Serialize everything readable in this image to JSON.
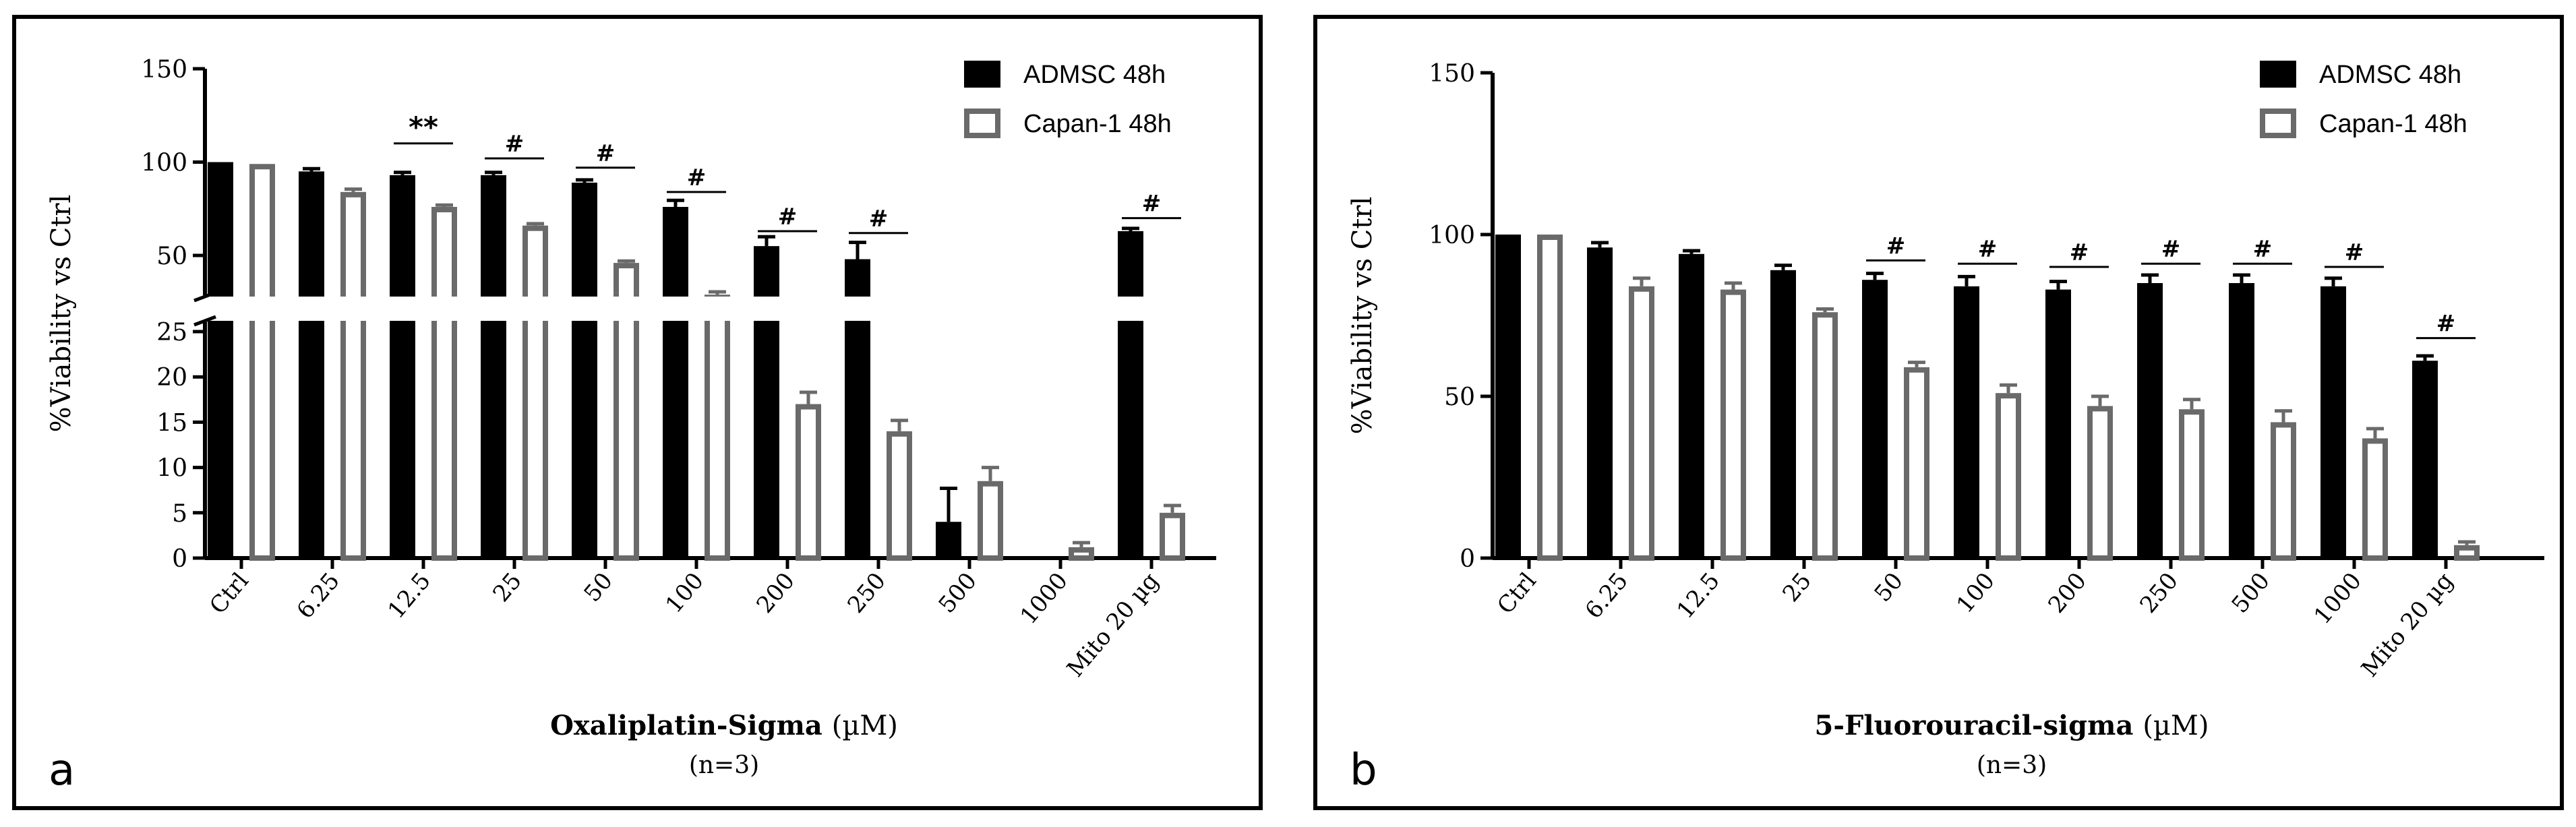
{
  "colors": {
    "admsc": "#000000",
    "capan": "#6a6a6a",
    "axis": "#000000"
  },
  "chart_data": [
    {
      "panel_label": "a",
      "type": "bar",
      "axis_break": true,
      "title": "",
      "ylabel": "%Viability vs Ctrl",
      "xlabel": "Oxaliplatin-Sigma",
      "xlabel_unit": "(µM)",
      "n_label": "(n=3)",
      "categories": [
        "Ctrl",
        "6.25",
        "12.5",
        "25",
        "50",
        "100",
        "200",
        "250",
        "500",
        "1000",
        "Mito 20 µg"
      ],
      "lower_ticks": [
        0,
        5,
        10,
        15,
        20,
        25
      ],
      "upper_ticks": [
        50,
        100,
        150
      ],
      "ylim_lower": [
        0,
        25
      ],
      "ylim_upper": [
        25,
        150
      ],
      "legend": [
        "ADMSC 48h",
        "Capan-1 48h"
      ],
      "legend_position": "top-right",
      "series": [
        {
          "name": "ADMSC 48h",
          "values": [
            100,
            95,
            93,
            93,
            89,
            76,
            55,
            48,
            4,
            0,
            63
          ],
          "errors": [
            0,
            1.5,
            1.5,
            1.5,
            1.5,
            3.5,
            5,
            9,
            3.7,
            0,
            1.5
          ]
        },
        {
          "name": "Capan-1 48h",
          "values": [
            99,
            84,
            76,
            66,
            46,
            29,
            17,
            14,
            8.5,
            1.2,
            5
          ],
          "errors": [
            0,
            1.5,
            1,
            1,
            1,
            1.5,
            1.3,
            1.2,
            1.5,
            0.5,
            0.8
          ]
        }
      ],
      "annotations": [
        {
          "category": 2,
          "value": 110,
          "text": "**"
        },
        {
          "category": 3,
          "value": 102,
          "text": "#"
        },
        {
          "category": 4,
          "value": 97,
          "text": "#"
        },
        {
          "category": 5,
          "value": 84,
          "text": "#"
        },
        {
          "category": 6,
          "value": 63,
          "text": "#"
        },
        {
          "category": 7,
          "value": 62,
          "text": "#"
        },
        {
          "category": 10,
          "value": 70,
          "text": "#"
        }
      ]
    },
    {
      "panel_label": "b",
      "type": "bar",
      "axis_break": false,
      "title": "",
      "ylabel": "%Viability vs Ctrl",
      "xlabel": "5-Fluorouracil-sigma",
      "xlabel_unit": "(µM)",
      "n_label": "(n=3)",
      "categories": [
        "Ctrl",
        "6.25",
        "12.5",
        "25",
        "50",
        "100",
        "200",
        "250",
        "500",
        "1000",
        "Mito 20 µg"
      ],
      "ticks": [
        0,
        50,
        100,
        150
      ],
      "ylim": [
        0,
        150
      ],
      "legend": [
        "ADMSC 48h",
        "Capan-1 48h"
      ],
      "legend_position": "top-right",
      "series": [
        {
          "name": "ADMSC 48h",
          "values": [
            100,
            96,
            94,
            89,
            86,
            84,
            83,
            85,
            85,
            84,
            61
          ],
          "errors": [
            0,
            1.5,
            1,
            1.5,
            2,
            3,
            2.5,
            2.5,
            2.5,
            2.5,
            1.5
          ]
        },
        {
          "name": "Capan-1 48h",
          "values": [
            100,
            84,
            83,
            76,
            59,
            51,
            47,
            46,
            42,
            37,
            4
          ],
          "errors": [
            0,
            2.5,
            2,
            1,
            1.5,
            2.5,
            3,
            3,
            3.5,
            3,
            1
          ]
        }
      ],
      "annotations": [
        {
          "category": 4,
          "value": 92,
          "text": "#"
        },
        {
          "category": 5,
          "value": 91,
          "text": "#"
        },
        {
          "category": 6,
          "value": 90,
          "text": "#"
        },
        {
          "category": 7,
          "value": 91,
          "text": "#"
        },
        {
          "category": 8,
          "value": 91,
          "text": "#"
        },
        {
          "category": 9,
          "value": 90,
          "text": "#"
        },
        {
          "category": 10,
          "value": 68,
          "text": "#"
        }
      ]
    }
  ]
}
